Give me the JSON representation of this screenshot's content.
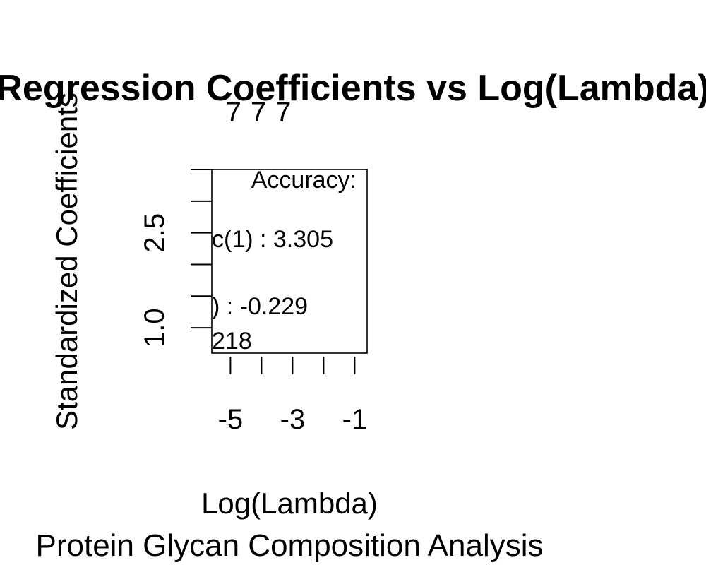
{
  "chart_data": {
    "type": "line",
    "title": "Regression Coefficients vs Log(Lambda)",
    "subtitle": "Protein Glycan Composition Analysis",
    "xlabel": "Log(Lambda)",
    "ylabel": "Standardized Coefficients",
    "xlim": [
      -5.6,
      -0.6
    ],
    "ylim": [
      0.6,
      3.5
    ],
    "x_ticks": [
      -5,
      -4,
      -3,
      -2,
      -1
    ],
    "x_tick_labels": [
      "-5",
      "",
      "-3",
      "",
      "-1"
    ],
    "y_ticks": [
      1.0,
      1.5,
      2.0,
      2.5,
      3.0,
      3.5
    ],
    "y_tick_labels": [
      "1.0",
      "",
      "",
      "2.5",
      "",
      ""
    ],
    "top_axis_ticks": [
      -4.9,
      -4.1,
      -3.3
    ],
    "top_axis_labels": [
      "7",
      "7",
      "7"
    ],
    "legend_position": "top-right",
    "legend": {
      "title": "Accuracy:",
      "lines": [
        "c(1) : 3.305",
        ") : -0.229",
        "218"
      ]
    },
    "series": []
  }
}
